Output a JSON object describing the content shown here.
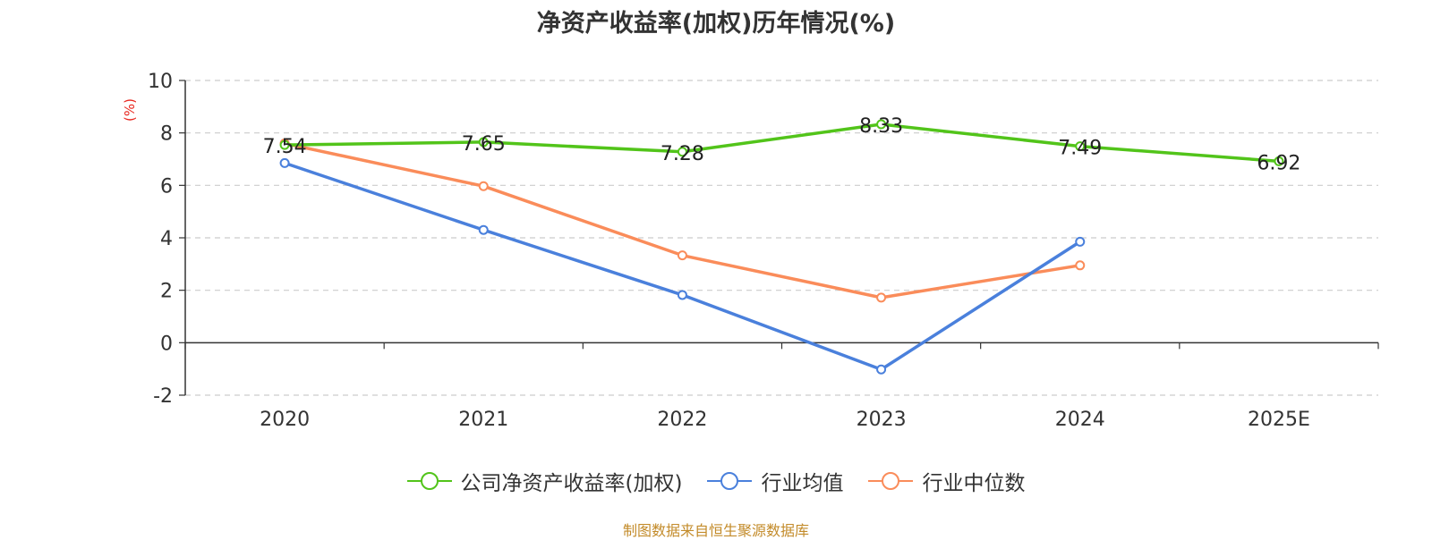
{
  "chart_data": {
    "type": "line",
    "title": "净资产收益率(加权)历年情况(%)",
    "ylabel": "(%)",
    "xlabel": "",
    "categories": [
      "2020",
      "2021",
      "2022",
      "2023",
      "2024",
      "2025E"
    ],
    "ylim": [
      -2,
      10
    ],
    "yticks": [
      -2,
      0,
      2,
      4,
      6,
      8,
      10
    ],
    "grid": true,
    "legend_position": "bottom-center",
    "series": [
      {
        "name": "公司净资产收益率(加权)",
        "color": "#52c41a",
        "values": [
          7.54,
          7.65,
          7.28,
          8.33,
          7.49,
          6.92
        ],
        "show_labels": true
      },
      {
        "name": "行业均值",
        "color": "#4a80dc",
        "values": [
          6.85,
          4.3,
          1.82,
          -1.02,
          3.85,
          null
        ],
        "show_labels": false
      },
      {
        "name": "行业中位数",
        "color": "#fa8c5a",
        "values": [
          7.6,
          5.97,
          3.33,
          1.72,
          2.95,
          null
        ],
        "show_labels": false
      }
    ]
  },
  "source_note": "制图数据来自恒生聚源数据库"
}
